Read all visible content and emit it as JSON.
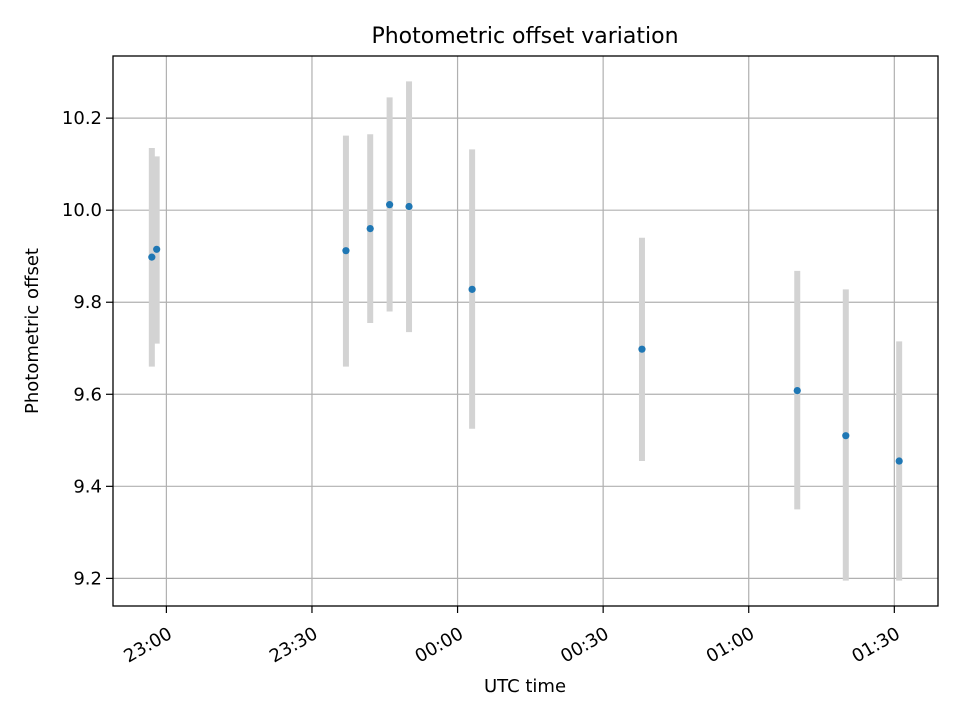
{
  "chart_data": {
    "type": "scatter",
    "title": "Photometric offset variation",
    "xlabel": "UTC time",
    "ylabel": "Photometric offset",
    "xlim": [
      "22:49",
      "01:39"
    ],
    "ylim": [
      9.14,
      10.335
    ],
    "grid": true,
    "x_ticks": [
      "23:00",
      "23:30",
      "00:00",
      "00:30",
      "01:00",
      "01:30"
    ],
    "y_ticks": [
      "9.2",
      "9.4",
      "9.6",
      "9.8",
      "10.0",
      "10.2"
    ],
    "point_color": "#1f77b4",
    "errorbar_color": "#d3d3d3",
    "series": [
      {
        "points": [
          {
            "x": "22:57",
            "y": 9.898,
            "ylo": 9.66,
            "yhi": 10.135
          },
          {
            "x": "22:58",
            "y": 9.915,
            "ylo": 9.71,
            "yhi": 10.117
          },
          {
            "x": "23:37",
            "y": 9.912,
            "ylo": 9.66,
            "yhi": 10.162
          },
          {
            "x": "23:42",
            "y": 9.96,
            "ylo": 9.755,
            "yhi": 10.165
          },
          {
            "x": "23:46",
            "y": 10.012,
            "ylo": 9.78,
            "yhi": 10.245
          },
          {
            "x": "23:50",
            "y": 10.008,
            "ylo": 9.735,
            "yhi": 10.28
          },
          {
            "x": "00:03",
            "y": 9.828,
            "ylo": 9.525,
            "yhi": 10.132
          },
          {
            "x": "00:38",
            "y": 9.698,
            "ylo": 9.455,
            "yhi": 9.94
          },
          {
            "x": "01:10",
            "y": 9.608,
            "ylo": 9.35,
            "yhi": 9.868
          },
          {
            "x": "01:20",
            "y": 9.51,
            "ylo": 9.195,
            "yhi": 9.828
          },
          {
            "x": "01:31",
            "y": 9.455,
            "ylo": 9.195,
            "yhi": 9.715
          }
        ]
      }
    ]
  }
}
